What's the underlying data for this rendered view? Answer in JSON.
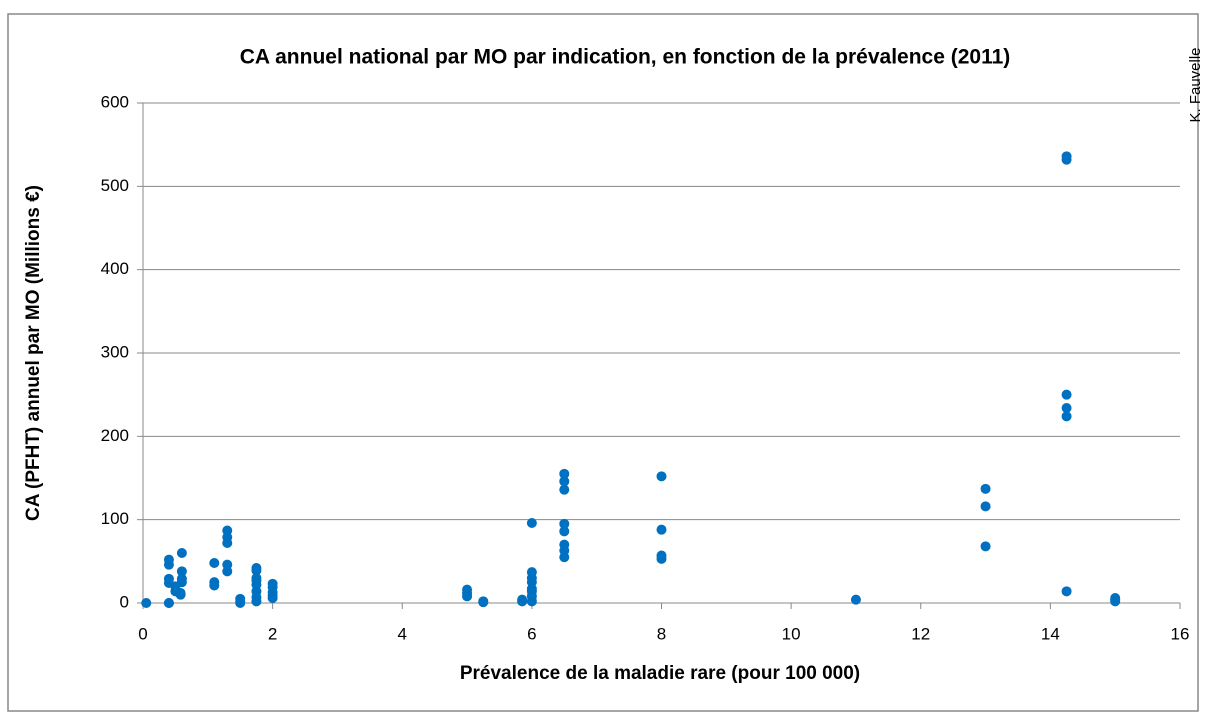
{
  "chart_data": {
    "type": "scatter",
    "title": "CA annuel national par MO par indication, en fonction de la prévalence (2011)",
    "x_label": "Prévalence de la maladie rare (pour 100 000)",
    "y_label": "CA (PFHT) annuel par MO (Millions €)",
    "annotation": "K. Fauvelle",
    "color": "#0070c0",
    "x": [
      0.05,
      0.4,
      0.4,
      0.4,
      0.4,
      0.4,
      0.4,
      0.5,
      0.5,
      0.58,
      0.58,
      0.6,
      0.6,
      0.6,
      0.6,
      1.1,
      1.1,
      1.1,
      1.3,
      1.3,
      1.3,
      1.3,
      1.3,
      1.5,
      1.5,
      1.5,
      1.75,
      1.75,
      1.75,
      1.75,
      1.75,
      1.75,
      1.75,
      1.75,
      2,
      2,
      2,
      2,
      2,
      5,
      5,
      5,
      5.25,
      5.25,
      5.85,
      5.85,
      6,
      6,
      6,
      6,
      6,
      6,
      6,
      6,
      6.5,
      6.5,
      6.5,
      6.5,
      6.5,
      6.5,
      6.5,
      6.5,
      8,
      8,
      8,
      8,
      11,
      13,
      13,
      13,
      14.25,
      14.25,
      14.25,
      14.25,
      14.25,
      14.25,
      15,
      15,
      15
    ],
    "values": [
      0,
      52,
      46,
      29,
      24,
      0,
      0,
      20,
      14,
      10,
      12,
      25,
      29,
      38,
      60,
      48,
      25,
      21,
      87,
      79,
      72,
      46,
      38,
      5,
      2,
      0,
      42,
      39,
      30,
      27,
      22,
      14,
      7,
      2,
      23,
      19,
      13,
      9,
      6,
      16,
      12,
      8,
      2,
      1,
      4,
      2,
      96,
      37,
      30,
      25,
      17,
      14,
      8,
      2,
      155,
      146,
      136,
      95,
      86,
      70,
      63,
      55,
      152,
      88,
      57,
      53,
      4,
      137,
      116,
      68,
      536,
      532,
      250,
      234,
      224,
      14,
      6,
      4,
      2
    ],
    "xlim": [
      0,
      16
    ],
    "xticks": [
      0,
      2,
      4,
      6,
      8,
      10,
      12,
      14,
      16
    ],
    "ylim": [
      0,
      600
    ],
    "yticks": [
      0,
      100,
      200,
      300,
      400,
      500,
      600
    ],
    "grid": true
  }
}
